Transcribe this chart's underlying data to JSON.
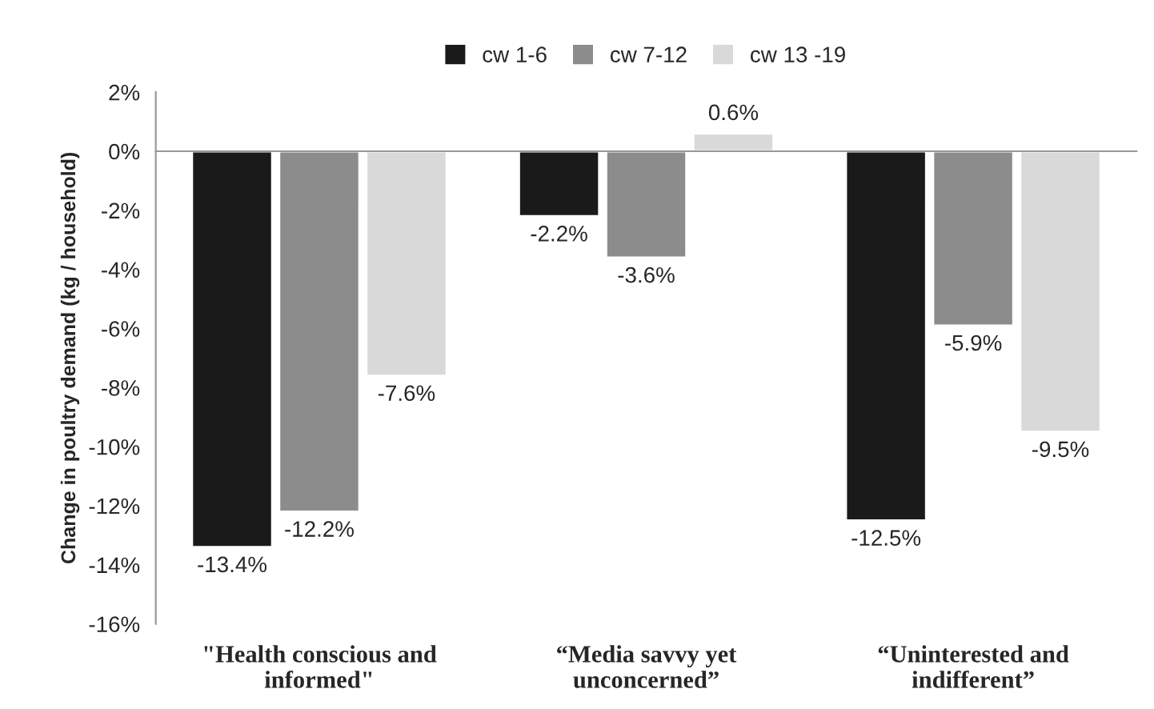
{
  "chart_data": {
    "type": "bar",
    "ylabel": "Change in poultry demand (kg / household)",
    "categories": [
      "\"Health conscious and\ninformed\"",
      "“Media savvy yet\nunconcerned”",
      "“Uninterested and\nindifferent”"
    ],
    "series": [
      {
        "name": "cw 1-6",
        "color": "#1a1a1a",
        "values": [
          -13.4,
          -2.2,
          -12.5
        ],
        "value_labels": [
          "-13.4%",
          "-2.2%",
          "-12.5%"
        ]
      },
      {
        "name": "cw 7-12",
        "color": "#8c8c8c",
        "values": [
          -12.2,
          -3.6,
          -5.9
        ],
        "value_labels": [
          "-12.2%",
          "-3.6%",
          "-5.9%"
        ]
      },
      {
        "name": "cw 13 -19",
        "color": "#d9d9d9",
        "values": [
          -7.6,
          0.6,
          -9.5
        ],
        "value_labels": [
          "-7.6%",
          "0.6%",
          "-9.5%"
        ]
      }
    ],
    "ylim": [
      -16,
      2
    ],
    "yticks": [
      {
        "value": 2,
        "label": "2%"
      },
      {
        "value": 0,
        "label": "0%"
      },
      {
        "value": -2,
        "label": "-2%"
      },
      {
        "value": -4,
        "label": "-4%"
      },
      {
        "value": -6,
        "label": "-6%"
      },
      {
        "value": -8,
        "label": "-8%"
      },
      {
        "value": -10,
        "label": "-10%"
      },
      {
        "value": -12,
        "label": "-12%"
      },
      {
        "value": -14,
        "label": "-14%"
      },
      {
        "value": -16,
        "label": "-16%"
      }
    ],
    "legend": "top"
  }
}
